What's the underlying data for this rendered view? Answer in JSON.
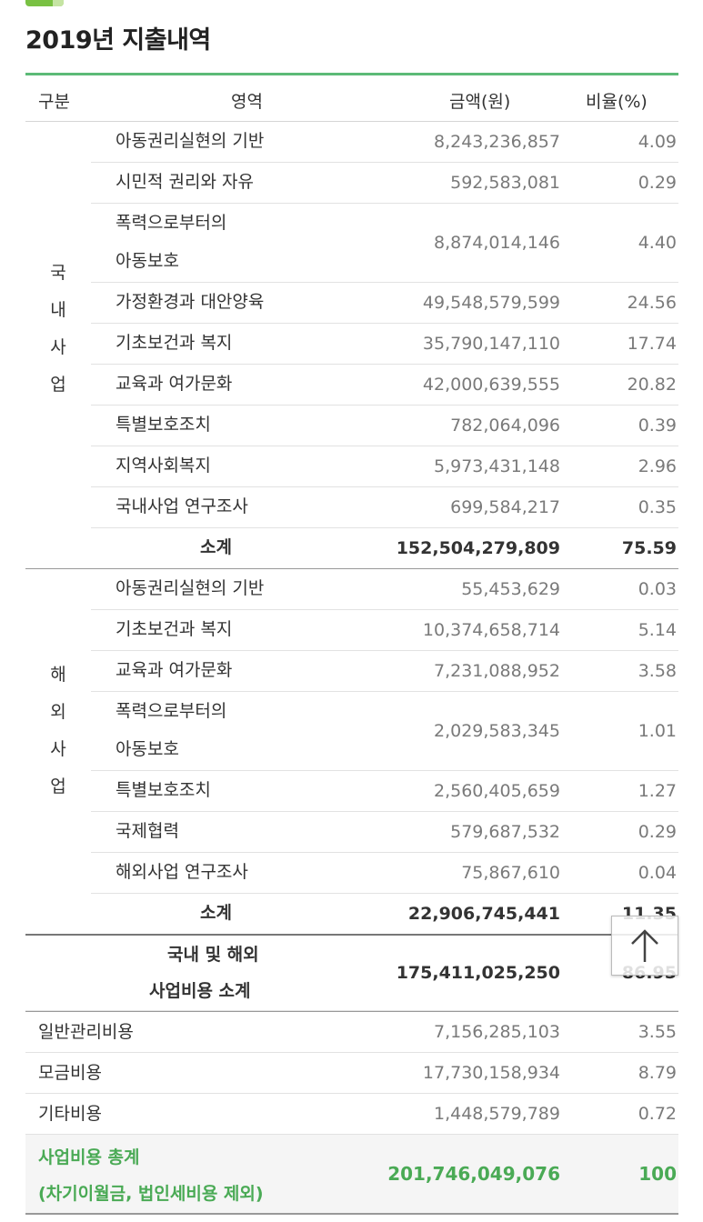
{
  "title": "2019년 지출내역",
  "header": {
    "col_group": "구분",
    "col_area": "영역",
    "col_amount": "금액(원)",
    "col_ratio": "비율(%)"
  },
  "domestic": {
    "group_label": [
      "국",
      "내",
      "사",
      "업"
    ],
    "rows": [
      {
        "name": "아동권리실현의 기반",
        "amount": "8,243,236,857",
        "ratio": "4.09"
      },
      {
        "name": "시민적 권리와 자유",
        "amount": "592,583,081",
        "ratio": "0.29"
      },
      {
        "name": "폭력으로부터의",
        "name2": "아동보호",
        "amount": "8,874,014,146",
        "ratio": "4.40"
      },
      {
        "name": "가정환경과 대안양육",
        "amount": "49,548,579,599",
        "ratio": "24.56"
      },
      {
        "name": "기초보건과 복지",
        "amount": "35,790,147,110",
        "ratio": "17.74"
      },
      {
        "name": "교육과 여가문화",
        "amount": "42,000,639,555",
        "ratio": "20.82"
      },
      {
        "name": "특별보호조치",
        "amount": "782,064,096",
        "ratio": "0.39"
      },
      {
        "name": "지역사회복지",
        "amount": "5,973,431,148",
        "ratio": "2.96"
      },
      {
        "name": "국내사업 연구조사",
        "amount": "699,584,217",
        "ratio": "0.35"
      }
    ],
    "subtotal": {
      "name": "소계",
      "amount": "152,504,279,809",
      "ratio": "75.59"
    }
  },
  "overseas": {
    "group_label": [
      "해",
      "외",
      "사",
      "업"
    ],
    "rows": [
      {
        "name": "아동권리실현의 기반",
        "amount": "55,453,629",
        "ratio": "0.03"
      },
      {
        "name": "기초보건과 복지",
        "amount": "10,374,658,714",
        "ratio": "5.14"
      },
      {
        "name": "교육과 여가문화",
        "amount": "7,231,088,952",
        "ratio": "3.58"
      },
      {
        "name": "폭력으로부터의",
        "name2": "아동보호",
        "amount": "2,029,583,345",
        "ratio": "1.01"
      },
      {
        "name": "특별보호조치",
        "amount": "2,560,405,659",
        "ratio": "1.27"
      },
      {
        "name": "국제협력",
        "amount": "579,687,532",
        "ratio": "0.29"
      },
      {
        "name": "해외사업 연구조사",
        "amount": "75,867,610",
        "ratio": "0.04"
      }
    ],
    "subtotal": {
      "name": "소계",
      "amount": "22,906,745,441",
      "ratio": "11.35"
    }
  },
  "combined": {
    "line1": "국내 및 해외",
    "line2": "사업비용 소계",
    "amount": "175,411,025,250",
    "ratio": "86.95"
  },
  "others": [
    {
      "name": "일반관리비용",
      "amount": "7,156,285,103",
      "ratio": "3.55"
    },
    {
      "name": "모금비용",
      "amount": "17,730,158,934",
      "ratio": "8.79"
    },
    {
      "name": "기타비용",
      "amount": "1,448,579,789",
      "ratio": "0.72"
    }
  ],
  "total": {
    "line1": "사업비용 총계",
    "line2": "(차기이월금, 법인세비용 제외)",
    "amount": "201,746,049,076",
    "ratio": "100"
  },
  "colors": {
    "accent": "#5cba77",
    "total_text": "#4aaa55"
  },
  "scroll_top_icon": "arrow-up-icon"
}
